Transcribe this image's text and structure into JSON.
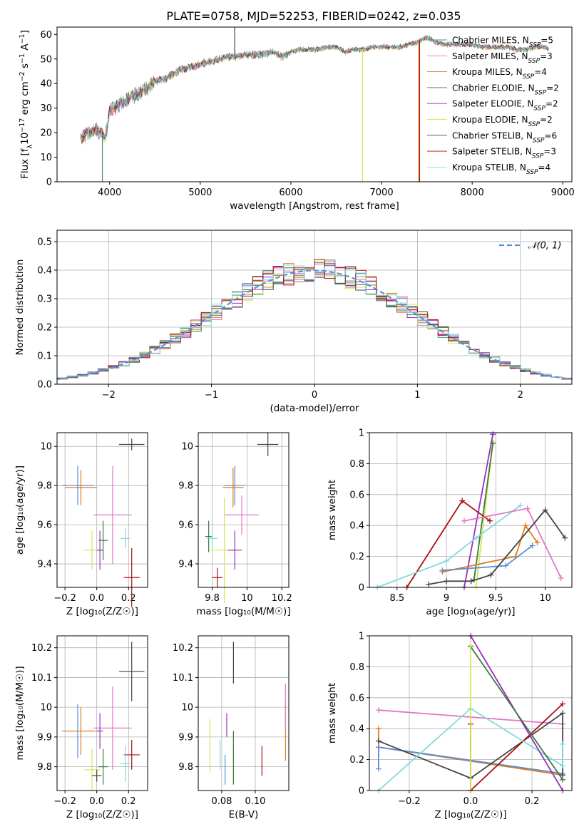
{
  "colors": {
    "Chabrier MILES": "#4a8c8c",
    "Salpeter MILES": "#e377c2",
    "Kroupa MILES": "#e07b1a",
    "Chabrier ELODIE": "#3d7a3d",
    "Salpeter ELODIE": "#9b2fbf",
    "Kroupa ELODIE": "#d4e65a",
    "Chabrier STELIB": "#444444",
    "Salpeter STELIB": "#aa1111",
    "Kroupa STELIB": "#7fdbe0",
    "errorbar_miles_chabrier": "#5b8fd8",
    "gauss": "#5b8fd8",
    "grid": "#b0b0b0"
  },
  "chart_data": [
    {
      "type": "line",
      "title": "PLATE=0758, MJD=52253, FIBERID=0242, z=0.035",
      "xlabel": "wavelength [Angstrom, rest frame]",
      "ylabel": "Flux [f$_\\lambda$10$^{-17}$ erg cm$^{-2}$ s$^{-1}$ A$^{-1}$]",
      "ylabel_parts": [
        "Flux [f",
        "λ",
        "10",
        "−17",
        " erg cm",
        "−2",
        " s",
        "−1",
        " A",
        "−1",
        "]"
      ],
      "xlim": [
        3420,
        9100
      ],
      "ylim": [
        0,
        63
      ],
      "xticks": [
        4000,
        5000,
        6000,
        7000,
        8000,
        9000
      ],
      "yticks": [
        0,
        10,
        20,
        30,
        40,
        50,
        60
      ],
      "legend": [
        {
          "label": "Chabrier MILES, N",
          "sub": "SSP",
          "eq": "=5",
          "model": "Chabrier MILES"
        },
        {
          "label": "Salpeter MILES, N",
          "sub": "SSP",
          "eq": "=3",
          "model": "Salpeter MILES"
        },
        {
          "label": "Kroupa MILES, N",
          "sub": "SSP",
          "eq": "=4",
          "model": "Kroupa MILES"
        },
        {
          "label": "Chabrier ELODIE, N",
          "sub": "SSP",
          "eq": "=2",
          "model": "Chabrier ELODIE"
        },
        {
          "label": "Salpeter ELODIE, N",
          "sub": "SSP",
          "eq": "=2",
          "model": "Salpeter ELODIE"
        },
        {
          "label": "Kroupa ELODIE, N",
          "sub": "SSP",
          "eq": "=2",
          "model": "Kroupa ELODIE"
        },
        {
          "label": "Chabrier STELIB, N",
          "sub": "SSP",
          "eq": "=6",
          "model": "Chabrier STELIB"
        },
        {
          "label": "Salpeter STELIB, N",
          "sub": "SSP",
          "eq": "=3",
          "model": "Salpeter STELIB"
        },
        {
          "label": "Kroupa STELIB, N",
          "sub": "SSP",
          "eq": "=4",
          "model": "Kroupa STELIB"
        }
      ],
      "continuum": [
        [
          3680,
          18
        ],
        [
          3750,
          20
        ],
        [
          3850,
          22
        ],
        [
          3950,
          18
        ],
        [
          4000,
          29
        ],
        [
          4100,
          32
        ],
        [
          4200,
          34
        ],
        [
          4300,
          36
        ],
        [
          4400,
          38
        ],
        [
          4500,
          41
        ],
        [
          4600,
          42
        ],
        [
          4700,
          44
        ],
        [
          4800,
          46
        ],
        [
          4900,
          47
        ],
        [
          5000,
          48
        ],
        [
          5100,
          49
        ],
        [
          5200,
          50
        ],
        [
          5300,
          51
        ],
        [
          5400,
          51
        ],
        [
          5500,
          52
        ],
        [
          5600,
          52
        ],
        [
          5700,
          52
        ],
        [
          5800,
          53
        ],
        [
          5900,
          51
        ],
        [
          6000,
          53
        ],
        [
          6100,
          54
        ],
        [
          6200,
          54
        ],
        [
          6300,
          54
        ],
        [
          6400,
          55
        ],
        [
          6500,
          55
        ],
        [
          6600,
          53
        ],
        [
          6700,
          54
        ],
        [
          6800,
          54
        ],
        [
          6900,
          55
        ],
        [
          7000,
          55
        ],
        [
          7100,
          55
        ],
        [
          7200,
          55
        ],
        [
          7300,
          56
        ],
        [
          7400,
          57
        ],
        [
          7500,
          59
        ],
        [
          7600,
          57
        ],
        [
          7700,
          56
        ],
        [
          7800,
          56
        ],
        [
          7900,
          56
        ],
        [
          8000,
          56
        ],
        [
          8100,
          55
        ],
        [
          8200,
          55
        ],
        [
          8300,
          55
        ],
        [
          8400,
          55
        ],
        [
          8500,
          54
        ],
        [
          8600,
          54
        ],
        [
          8700,
          55
        ],
        [
          8800,
          55
        ],
        [
          8850,
          54
        ]
      ],
      "glitches": [
        {
          "model": "Chabrier MILES",
          "x": 3920,
          "ymin": 0
        },
        {
          "model": "Kroupa ELODIE",
          "x": 6790,
          "ymin": 0
        },
        {
          "model": "Salpeter STELIB",
          "x": 7420,
          "ymin": 0
        },
        {
          "model": "Kroupa MILES",
          "x": 7410,
          "ymin": 0
        },
        {
          "model": "Chabrier STELIB",
          "x": 5380,
          "ymin": 63
        }
      ]
    },
    {
      "type": "step-histogram",
      "xlabel": "(data-model)/error",
      "ylabel": "Normed distribution",
      "xlim": [
        -2.5,
        2.5
      ],
      "ylim": [
        0,
        0.54
      ],
      "xticks": [
        -2,
        -1,
        0,
        1,
        2
      ],
      "xtick_labels": [
        "−2",
        "−1",
        "0",
        "1",
        "2"
      ],
      "yticks": [
        0.0,
        0.1,
        0.2,
        0.3,
        0.4,
        0.5
      ],
      "ytick_labels": [
        "0.0",
        "0.1",
        "0.2",
        "0.3",
        "0.4",
        "0.5"
      ],
      "bin_edges_start": -2.5,
      "bin_width": 0.1,
      "legend": "𝒩(0, 1)",
      "gauss_line": {
        "mu": 0,
        "sigma": 1
      }
    },
    {
      "type": "errorbar",
      "xlabel": "Z [log₁₀(Z/Z☉)]",
      "ylabel": "age  [log₁₀(age/yr)]",
      "xlim": [
        -0.25,
        0.32
      ],
      "ylim": [
        9.28,
        10.07
      ],
      "xticks": [
        -0.2,
        0.0,
        0.2
      ],
      "xtick_labels": [
        "−0.2",
        "0.0",
        "0.2"
      ],
      "yticks": [
        9.4,
        9.6,
        9.8,
        10.0
      ],
      "points": [
        {
          "model": "errorbar_miles_chabrier",
          "x": -0.12,
          "y": 9.8,
          "xerr": 0.1,
          "yerr": 0.1
        },
        {
          "model": "Kroupa MILES",
          "x": -0.1,
          "y": 9.79,
          "xerr": 0.1,
          "yerr": 0.09
        },
        {
          "model": "Salpeter MILES",
          "x": 0.1,
          "y": 9.65,
          "xerr": 0.12,
          "yerr": 0.25
        },
        {
          "model": "Kroupa ELODIE",
          "x": -0.03,
          "y": 9.47,
          "xerr": 0.05,
          "yerr": 0.1
        },
        {
          "model": "Chabrier ELODIE",
          "x": 0.04,
          "y": 9.52,
          "xerr": 0.03,
          "yerr": 0.1
        },
        {
          "model": "Chabrier STELIB",
          "x": 0.22,
          "y": 10.01,
          "xerr": 0.08,
          "yerr": 0.03
        },
        {
          "model": "Salpeter STELIB",
          "x": 0.22,
          "y": 9.33,
          "xerr": 0.05,
          "yerr": 0.15
        },
        {
          "model": "Kroupa STELIB",
          "x": 0.18,
          "y": 9.53,
          "xerr": 0.03,
          "yerr": 0.05
        },
        {
          "model": "Salpeter ELODIE",
          "x": 0.02,
          "y": 9.47,
          "xerr": 0.02,
          "yerr": 0.1
        }
      ]
    },
    {
      "type": "errorbar",
      "xlabel": "mass [log₁₀(M/M☉)]",
      "xlim": [
        9.72,
        10.24
      ],
      "ylim": [
        9.28,
        10.07
      ],
      "xticks": [
        9.8,
        10.0,
        10.2
      ],
      "yticks": [
        9.4,
        9.6,
        9.8,
        10.0
      ],
      "points": [
        {
          "model": "errorbar_miles_chabrier",
          "x": 9.93,
          "y": 9.8,
          "xerr": 0.06,
          "yerr": 0.1
        },
        {
          "model": "Kroupa MILES",
          "x": 9.92,
          "y": 9.79,
          "xerr": 0.06,
          "yerr": 0.1
        },
        {
          "model": "Salpeter MILES",
          "x": 9.97,
          "y": 9.65,
          "xerr": 0.1,
          "yerr": 0.1
        },
        {
          "model": "Kroupa ELODIE",
          "x": 9.87,
          "y": 9.47,
          "xerr": 0.08,
          "yerr": 0.27
        },
        {
          "model": "Chabrier ELODIE",
          "x": 9.78,
          "y": 9.54,
          "xerr": 0.02,
          "yerr": 0.08
        },
        {
          "model": "Kroupa STELIB",
          "x": 9.8,
          "y": 9.53,
          "xerr": 0.03,
          "yerr": 0.04
        },
        {
          "model": "Chabrier STELIB",
          "x": 10.12,
          "y": 10.01,
          "xerr": 0.06,
          "yerr": 0.06
        },
        {
          "model": "Salpeter STELIB",
          "x": 9.83,
          "y": 9.33,
          "xerr": 0.03,
          "yerr": 0.05
        },
        {
          "model": "Salpeter ELODIE",
          "x": 9.93,
          "y": 9.47,
          "xerr": 0.04,
          "yerr": 0.1
        }
      ]
    },
    {
      "type": "line",
      "xlabel": "age  [log₁₀(age/yr)]",
      "ylabel": "mass weight",
      "xlim": [
        8.22,
        10.27
      ],
      "ylim": [
        0,
        1.0
      ],
      "xticks": [
        8.5,
        9.0,
        9.5,
        10.0
      ],
      "yticks": [
        0.0,
        0.2,
        0.4,
        0.6,
        0.8,
        1.0
      ],
      "series": [
        {
          "model": "Kroupa ELODIE",
          "points": [
            [
              9.3,
              0.0
            ],
            [
              9.47,
              0.94
            ]
          ]
        },
        {
          "model": "Salpeter ELODIE",
          "points": [
            [
              9.18,
              0.0
            ],
            [
              9.47,
              0.99
            ]
          ]
        },
        {
          "model": "Chabrier ELODIE",
          "points": [
            [
              9.28,
              0.05
            ],
            [
              9.47,
              0.93
            ]
          ]
        },
        {
          "model": "Salpeter STELIB",
          "points": [
            [
              8.6,
              0.0
            ],
            [
              9.16,
              0.56
            ],
            [
              9.44,
              0.43
            ]
          ]
        },
        {
          "model": "Kroupa STELIB",
          "points": [
            [
              8.3,
              0.0
            ],
            [
              9.0,
              0.17
            ],
            [
              9.3,
              0.32
            ],
            [
              9.75,
              0.53
            ]
          ]
        },
        {
          "model": "Salpeter MILES",
          "points": [
            [
              9.18,
              0.43
            ],
            [
              9.82,
              0.51
            ],
            [
              10.16,
              0.06
            ]
          ]
        },
        {
          "model": "Kroupa MILES",
          "points": [
            [
              8.96,
              0.1
            ],
            [
              9.7,
              0.2
            ],
            [
              9.8,
              0.4
            ],
            [
              9.92,
              0.29
            ]
          ]
        },
        {
          "model": "errorbar_miles_chabrier",
          "points": [
            [
              8.96,
              0.11
            ],
            [
              9.6,
              0.14
            ],
            [
              9.87,
              0.27
            ]
          ]
        },
        {
          "model": "Chabrier STELIB",
          "points": [
            [
              8.82,
              0.02
            ],
            [
              9.0,
              0.04
            ],
            [
              9.25,
              0.04
            ],
            [
              9.45,
              0.08
            ],
            [
              10.0,
              0.5
            ],
            [
              10.2,
              0.32
            ]
          ]
        }
      ]
    },
    {
      "type": "errorbar",
      "xlabel": "Z [log₁₀(Z/Z☉)]",
      "ylabel": "mass [log₁₀(M/M☉)]",
      "xlim": [
        -0.25,
        0.32
      ],
      "ylim": [
        9.72,
        10.24
      ],
      "xticks": [
        -0.2,
        0.0,
        0.2
      ],
      "xtick_labels": [
        "−0.2",
        "0.0",
        "0.2"
      ],
      "yticks": [
        9.8,
        9.9,
        10.0,
        10.1,
        10.2
      ],
      "points": [
        {
          "model": "errorbar_miles_chabrier",
          "x": -0.12,
          "y": 9.92,
          "xerr": 0.1,
          "yerr": 0.09
        },
        {
          "model": "Kroupa MILES",
          "x": -0.1,
          "y": 9.92,
          "xerr": 0.1,
          "yerr": 0.08
        },
        {
          "model": "Salpeter MILES",
          "x": 0.1,
          "y": 9.93,
          "xerr": 0.12,
          "yerr": 0.14
        },
        {
          "model": "Kroupa ELODIE",
          "x": -0.03,
          "y": 9.79,
          "xerr": 0.05,
          "yerr": 0.07
        },
        {
          "model": "Chabrier ELODIE",
          "x": 0.04,
          "y": 9.8,
          "xerr": 0.03,
          "yerr": 0.06
        },
        {
          "model": "Chabrier STELIB",
          "x": 0.22,
          "y": 10.12,
          "xerr": 0.08,
          "yerr": 0.1
        },
        {
          "model": "Salpeter STELIB",
          "x": 0.22,
          "y": 9.84,
          "xerr": 0.05,
          "yerr": 0.05
        },
        {
          "model": "Kroupa STELIB",
          "x": 0.18,
          "y": 9.81,
          "xerr": 0.03,
          "yerr": 0.06
        },
        {
          "model": "Salpeter ELODIE",
          "x": 0.02,
          "y": 9.92,
          "xerr": 0.02,
          "yerr": 0.06
        },
        {
          "model": "Chabrier STELIB",
          "x": 0.0,
          "y": 9.77,
          "xerr": 0.03,
          "yerr": 0.02
        }
      ]
    },
    {
      "type": "errorbar",
      "xlabel": "E(B-V)",
      "xlim": [
        0.066,
        0.12
      ],
      "ylim": [
        9.72,
        10.24
      ],
      "xticks": [
        0.08,
        0.1
      ],
      "xtick_labels": [
        "0.08",
        "0.10"
      ],
      "yticks": [
        9.8,
        9.9,
        10.0,
        10.1,
        10.2
      ],
      "points": [
        {
          "model": "Kroupa ELODIE",
          "x": 0.073,
          "y": 9.87,
          "yerr": 0.09
        },
        {
          "model": "Kroupa STELIB",
          "x": 0.079,
          "y": 9.84,
          "yerr": 0.05
        },
        {
          "model": "errorbar_miles_chabrier",
          "x": 0.082,
          "y": 9.79,
          "yerr": 0.05
        },
        {
          "model": "Chabrier ELODIE",
          "x": 0.087,
          "y": 9.83,
          "yerr": 0.09
        },
        {
          "model": "Salpeter ELODIE",
          "x": 0.083,
          "y": 9.94,
          "yerr": 0.04
        },
        {
          "model": "Chabrier STELIB",
          "x": 0.087,
          "y": 10.15,
          "yerr": 0.07
        },
        {
          "model": "Salpeter STELIB",
          "x": 0.104,
          "y": 9.82,
          "yerr": 0.05
        },
        {
          "model": "Kroupa MILES",
          "x": 0.118,
          "y": 9.92,
          "yerr": 0.1
        },
        {
          "model": "Salpeter MILES",
          "x": 0.118,
          "y": 10.0,
          "yerr": 0.08
        }
      ]
    },
    {
      "type": "line",
      "xlabel": "Z [log₁₀(Z/Z☉)]",
      "ylabel": "mass weight",
      "xlim": [
        -0.33,
        0.33
      ],
      "ylim": [
        0,
        1.0
      ],
      "xticks": [
        -0.2,
        0.0,
        0.2
      ],
      "xtick_labels": [
        "−0.2",
        "0.0",
        "0.2"
      ],
      "yticks": [
        0.0,
        0.2,
        0.4,
        0.6,
        0.8,
        1.0
      ],
      "series": [
        {
          "model": "Salpeter MILES",
          "points": [
            [
              -0.3,
              0.52
            ],
            [
              0.3,
              0.43
            ]
          ]
        },
        {
          "model": "Kroupa MILES",
          "points": [
            [
              -0.3,
              0.4
            ],
            [
              -0.3,
              0.28
            ],
            [
              0.3,
              0.1
            ]
          ]
        },
        {
          "model": "errorbar_miles_chabrier",
          "points": [
            [
              -0.3,
              0.14
            ],
            [
              -0.3,
              0.28
            ],
            [
              0.3,
              0.11
            ]
          ]
        },
        {
          "model": "Chabrier STELIB",
          "points": [
            [
              -0.3,
              0.32
            ],
            [
              0.0,
              0.08
            ],
            [
              0.3,
              0.5
            ],
            [
              0.3,
              0.1
            ]
          ]
        },
        {
          "model": "Salpeter STELIB",
          "points": [
            [
              0.0,
              0.0
            ],
            [
              0.0,
              0.43
            ],
            [
              0.0,
              0.0
            ],
            [
              0.3,
              0.56
            ]
          ]
        },
        {
          "model": "Kroupa STELIB",
          "points": [
            [
              -0.3,
              0.0
            ],
            [
              0.0,
              0.53
            ],
            [
              0.3,
              0.16
            ],
            [
              0.3,
              0.3
            ]
          ]
        },
        {
          "model": "Salpeter ELODIE",
          "points": [
            [
              0.0,
              1.0
            ],
            [
              0.3,
              0.0
            ]
          ]
        },
        {
          "model": "Chabrier ELODIE",
          "points": [
            [
              0.0,
              0.93
            ],
            [
              0.3,
              0.07
            ]
          ]
        },
        {
          "model": "Kroupa ELODIE",
          "points": [
            [
              0.0,
              0.94
            ],
            [
              0.0,
              0.0
            ]
          ]
        }
      ]
    }
  ]
}
